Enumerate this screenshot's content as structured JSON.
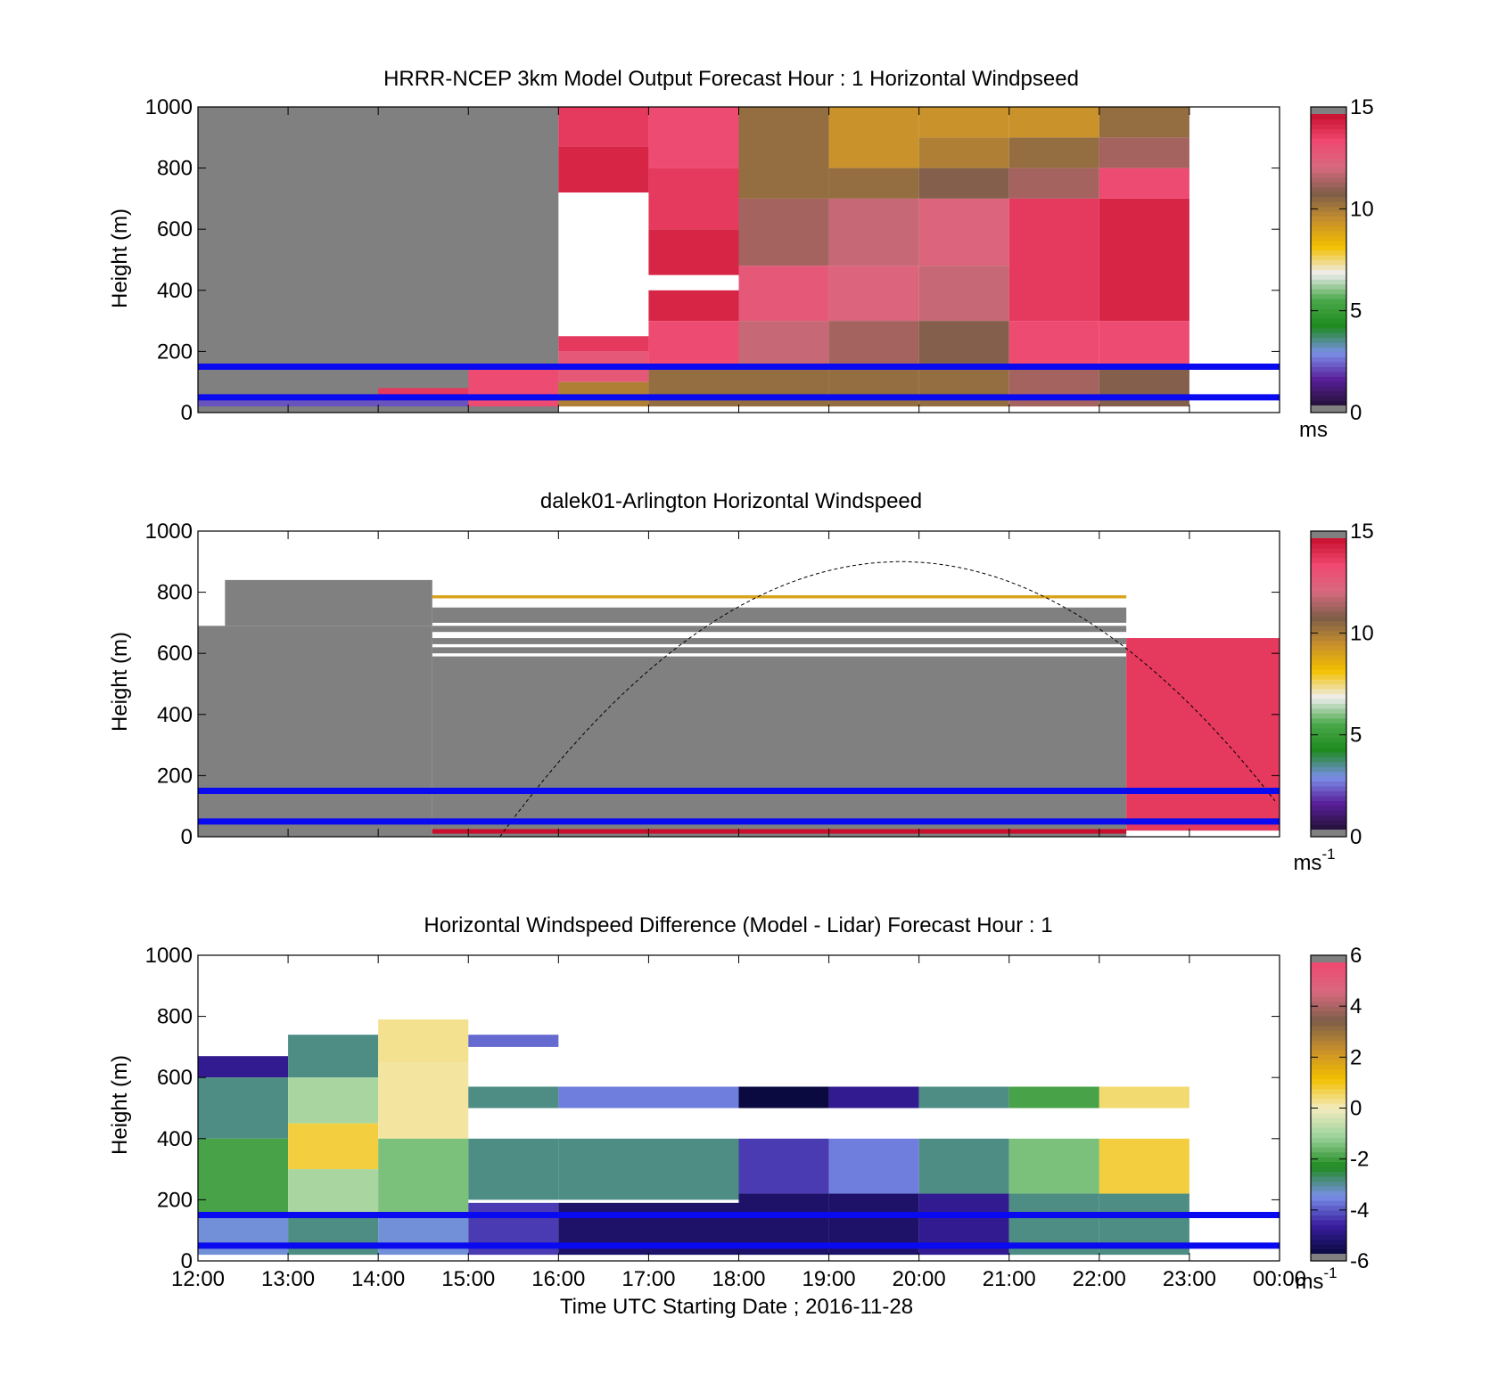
{
  "figure": {
    "xlabel": "Time UTC  Starting Date ; 2016-11-28",
    "colors": {
      "gray": "#808080",
      "lidar_line": "#0a0af0",
      "speed_scale": [
        "#231237",
        "#5a1e9a",
        "#7a90e8",
        "#1f8a1f",
        "#4aa84a",
        "#eeeeee",
        "#f3c000",
        "#c8902c",
        "#7e5e48",
        "#d86a80",
        "#f04870",
        "#c8102e"
      ],
      "diff_scale": [
        "#0a0a40",
        "#3a1ea0",
        "#7a90e8",
        "#1f8a1f",
        "#9ad29a",
        "#f3ecc0",
        "#f3c000",
        "#c8902c",
        "#7e5e48",
        "#d86a80",
        "#f04870"
      ]
    }
  },
  "chart_data": [
    {
      "type": "heatmap",
      "title": "HRRR-NCEP 3km Model Output   Forecast Hour : 1 Horizontal Windpseed",
      "ylabel": "Height (m)",
      "ylim": [
        0,
        1000
      ],
      "xlim": [
        "12:00",
        "00:00"
      ],
      "x_ticks": [
        "12:00",
        "13:00",
        "14:00",
        "15:00",
        "16:00",
        "17:00",
        "18:00",
        "19:00",
        "20:00",
        "21:00",
        "22:00",
        "23:00",
        "00:00"
      ],
      "y_ticks": [
        "0",
        "200",
        "400",
        "600",
        "800",
        "1000"
      ],
      "colorbar": {
        "min": 0,
        "max": 15,
        "ticks": [
          "0",
          "5",
          "10",
          "15"
        ],
        "unit": "ms"
      },
      "reference_lines_m": [
        50,
        150
      ],
      "cells": [
        {
          "t0": 12,
          "t1": 16,
          "z0": 0,
          "z1": 1000,
          "v": 16
        },
        {
          "t0": 12,
          "t1": 16,
          "z0": 20,
          "z1": 40,
          "v": 2
        },
        {
          "t0": 14,
          "t1": 15,
          "z0": 40,
          "z1": 80,
          "v": 14
        },
        {
          "t0": 15,
          "t1": 16,
          "z0": 20,
          "z1": 150,
          "v": 13.5
        },
        {
          "t0": 16,
          "t1": 17,
          "z0": 870,
          "z1": 1000,
          "v": 14
        },
        {
          "t0": 16,
          "t1": 17,
          "z0": 720,
          "z1": 870,
          "v": 14.5
        },
        {
          "t0": 16,
          "t1": 17,
          "z0": 200,
          "z1": 250,
          "v": 14
        },
        {
          "t0": 16,
          "t1": 17,
          "z0": 100,
          "z1": 200,
          "v": 13
        },
        {
          "t0": 16,
          "t1": 17,
          "z0": 20,
          "z1": 100,
          "v": 10
        },
        {
          "t0": 17,
          "t1": 18,
          "z0": 800,
          "z1": 1000,
          "v": 13.5
        },
        {
          "t0": 17,
          "t1": 18,
          "z0": 600,
          "z1": 800,
          "v": 14
        },
        {
          "t0": 17,
          "t1": 18,
          "z0": 450,
          "z1": 600,
          "v": 14.5
        },
        {
          "t0": 17,
          "t1": 18,
          "z0": 300,
          "z1": 400,
          "v": 14.5
        },
        {
          "t0": 17,
          "t1": 18,
          "z0": 150,
          "z1": 300,
          "v": 13.5
        },
        {
          "t0": 17,
          "t1": 18,
          "z0": 20,
          "z1": 150,
          "v": 10.5
        },
        {
          "t0": 18,
          "t1": 19,
          "z0": 700,
          "z1": 1000,
          "v": 10.5
        },
        {
          "t0": 18,
          "t1": 19,
          "z0": 480,
          "z1": 700,
          "v": 11.5
        },
        {
          "t0": 18,
          "t1": 19,
          "z0": 300,
          "z1": 480,
          "v": 13
        },
        {
          "t0": 18,
          "t1": 19,
          "z0": 150,
          "z1": 300,
          "v": 12
        },
        {
          "t0": 18,
          "t1": 19,
          "z0": 20,
          "z1": 150,
          "v": 10.5
        },
        {
          "t0": 19,
          "t1": 20,
          "z0": 800,
          "z1": 1000,
          "v": 9.5
        },
        {
          "t0": 19,
          "t1": 20,
          "z0": 700,
          "z1": 800,
          "v": 10.5
        },
        {
          "t0": 19,
          "t1": 20,
          "z0": 480,
          "z1": 700,
          "v": 12
        },
        {
          "t0": 19,
          "t1": 20,
          "z0": 300,
          "z1": 480,
          "v": 12.5
        },
        {
          "t0": 19,
          "t1": 20,
          "z0": 150,
          "z1": 300,
          "v": 11.5
        },
        {
          "t0": 19,
          "t1": 20,
          "z0": 20,
          "z1": 150,
          "v": 10.5
        },
        {
          "t0": 20,
          "t1": 21,
          "z0": 900,
          "z1": 1000,
          "v": 9.5
        },
        {
          "t0": 20,
          "t1": 21,
          "z0": 800,
          "z1": 900,
          "v": 10
        },
        {
          "t0": 20,
          "t1": 21,
          "z0": 700,
          "z1": 800,
          "v": 11
        },
        {
          "t0": 20,
          "t1": 21,
          "z0": 480,
          "z1": 700,
          "v": 12.5
        },
        {
          "t0": 20,
          "t1": 21,
          "z0": 300,
          "z1": 480,
          "v": 12
        },
        {
          "t0": 20,
          "t1": 21,
          "z0": 150,
          "z1": 300,
          "v": 11
        },
        {
          "t0": 20,
          "t1": 21,
          "z0": 20,
          "z1": 150,
          "v": 10.5
        },
        {
          "t0": 21,
          "t1": 22,
          "z0": 900,
          "z1": 1000,
          "v": 9.5
        },
        {
          "t0": 21,
          "t1": 22,
          "z0": 800,
          "z1": 900,
          "v": 10.5
        },
        {
          "t0": 21,
          "t1": 22,
          "z0": 700,
          "z1": 800,
          "v": 11.5
        },
        {
          "t0": 21,
          "t1": 22,
          "z0": 300,
          "z1": 700,
          "v": 14
        },
        {
          "t0": 21,
          "t1": 22,
          "z0": 150,
          "z1": 300,
          "v": 13.5
        },
        {
          "t0": 21,
          "t1": 22,
          "z0": 20,
          "z1": 150,
          "v": 11.5
        },
        {
          "t0": 22,
          "t1": 23,
          "z0": 900,
          "z1": 1000,
          "v": 10.5
        },
        {
          "t0": 22,
          "t1": 23,
          "z0": 800,
          "z1": 900,
          "v": 11.5
        },
        {
          "t0": 22,
          "t1": 23,
          "z0": 700,
          "z1": 800,
          "v": 13.5
        },
        {
          "t0": 22,
          "t1": 23,
          "z0": 300,
          "z1": 700,
          "v": 14.5
        },
        {
          "t0": 22,
          "t1": 23,
          "z0": 150,
          "z1": 300,
          "v": 13.5
        },
        {
          "t0": 22,
          "t1": 23,
          "z0": 20,
          "z1": 150,
          "v": 11
        }
      ]
    },
    {
      "type": "heatmap",
      "title": "dalek01-Arlington  Horizontal Windspeed",
      "ylabel": "Height (m)",
      "ylim": [
        0,
        1000
      ],
      "xlim": [
        "12:00",
        "00:00"
      ],
      "y_ticks": [
        "0",
        "200",
        "400",
        "600",
        "800",
        "1000"
      ],
      "colorbar": {
        "min": 0,
        "max": 15,
        "ticks": [
          "0",
          "5",
          "10",
          "15"
        ],
        "unit": "ms",
        "unit_exp": "-1"
      },
      "reference_lines_m": [
        50,
        150
      ],
      "solar_elevation_curve": {
        "t_start": 15.35,
        "t_end": 24,
        "peak_t": 19.8,
        "peak_z": 900
      },
      "cells": [
        {
          "t0": 12,
          "t1": 14.6,
          "z0": 0,
          "z1": 690,
          "v": 16
        },
        {
          "t0": 12.3,
          "t1": 14.6,
          "z0": 690,
          "z1": 840,
          "v": 16
        },
        {
          "t0": 14.6,
          "t1": 22.3,
          "z0": 0,
          "z1": 590,
          "v": 16
        },
        {
          "t0": 14.6,
          "t1": 22.3,
          "z0": 600,
          "z1": 620,
          "v": 16
        },
        {
          "t0": 14.6,
          "t1": 22.3,
          "z0": 630,
          "z1": 650,
          "v": 16
        },
        {
          "t0": 14.6,
          "t1": 22.3,
          "z0": 670,
          "z1": 690,
          "v": 16
        },
        {
          "t0": 14.6,
          "t1": 22.3,
          "z0": 700,
          "z1": 750,
          "v": 16
        },
        {
          "t0": 14.6,
          "t1": 22.3,
          "z0": 780,
          "z1": 790,
          "v": 9
        },
        {
          "t0": 14.6,
          "t1": 22.3,
          "z0": 10,
          "z1": 25,
          "v": 15
        },
        {
          "t0": 22.3,
          "t1": 24,
          "z0": 20,
          "z1": 650,
          "v": 14
        }
      ]
    },
    {
      "type": "heatmap",
      "title": "Horizontal Windspeed Difference (Model - Lidar) Forecast Hour : 1",
      "ylabel": "Height (m)",
      "ylim": [
        0,
        1000
      ],
      "xlim": [
        "12:00",
        "00:00"
      ],
      "y_ticks": [
        "0",
        "200",
        "400",
        "600",
        "800",
        "1000"
      ],
      "colorbar": {
        "min": -6,
        "max": 6,
        "ticks": [
          "-6",
          "-4",
          "-2",
          "0",
          "2",
          "4",
          "6"
        ],
        "unit": "ms",
        "unit_exp": "-1"
      },
      "reference_lines_m": [
        50,
        150
      ],
      "cells": [
        {
          "t0": 12,
          "t1": 13,
          "z0": 600,
          "z1": 670,
          "v": -5
        },
        {
          "t0": 12,
          "t1": 13,
          "z0": 400,
          "z1": 600,
          "v": -3
        },
        {
          "t0": 12,
          "t1": 13,
          "z0": 150,
          "z1": 400,
          "v": -2
        },
        {
          "t0": 12,
          "t1": 13,
          "z0": 20,
          "z1": 150,
          "v": -3.5
        },
        {
          "t0": 13,
          "t1": 14,
          "z0": 600,
          "z1": 740,
          "v": -3
        },
        {
          "t0": 13,
          "t1": 14,
          "z0": 450,
          "z1": 600,
          "v": -1
        },
        {
          "t0": 13,
          "t1": 14,
          "z0": 300,
          "z1": 450,
          "v": 0.8
        },
        {
          "t0": 13,
          "t1": 14,
          "z0": 150,
          "z1": 300,
          "v": -1
        },
        {
          "t0": 13,
          "t1": 14,
          "z0": 20,
          "z1": 150,
          "v": -3
        },
        {
          "t0": 14,
          "t1": 15,
          "z0": 650,
          "z1": 790,
          "v": 0.3
        },
        {
          "t0": 14,
          "t1": 15,
          "z0": 400,
          "z1": 650,
          "v": 0.2
        },
        {
          "t0": 14,
          "t1": 15,
          "z0": 150,
          "z1": 400,
          "v": -1.5
        },
        {
          "t0": 14,
          "t1": 15,
          "z0": 20,
          "z1": 150,
          "v": -3.5
        },
        {
          "t0": 15,
          "t1": 16,
          "z0": 700,
          "z1": 740,
          "v": -4
        },
        {
          "t0": 15,
          "t1": 16,
          "z0": 500,
          "z1": 570,
          "v": -3
        },
        {
          "t0": 15,
          "t1": 16,
          "z0": 200,
          "z1": 400,
          "v": -3
        },
        {
          "t0": 15,
          "t1": 16,
          "z0": 20,
          "z1": 190,
          "v": -4.5
        },
        {
          "t0": 16,
          "t1": 18,
          "z0": 500,
          "z1": 570,
          "v": -3.8
        },
        {
          "t0": 16,
          "t1": 18,
          "z0": 200,
          "z1": 400,
          "v": -3
        },
        {
          "t0": 16,
          "t1": 18,
          "z0": 20,
          "z1": 190,
          "v": -5.5
        },
        {
          "t0": 18,
          "t1": 19,
          "z0": 500,
          "z1": 570,
          "v": -6
        },
        {
          "t0": 18,
          "t1": 19,
          "z0": 220,
          "z1": 400,
          "v": -4.5
        },
        {
          "t0": 18,
          "t1": 19,
          "z0": 20,
          "z1": 220,
          "v": -5.5
        },
        {
          "t0": 19,
          "t1": 20,
          "z0": 500,
          "z1": 570,
          "v": -5
        },
        {
          "t0": 19,
          "t1": 20,
          "z0": 220,
          "z1": 400,
          "v": -3.8
        },
        {
          "t0": 19,
          "t1": 20,
          "z0": 20,
          "z1": 220,
          "v": -5.5
        },
        {
          "t0": 20,
          "t1": 21,
          "z0": 500,
          "z1": 570,
          "v": -3
        },
        {
          "t0": 20,
          "t1": 21,
          "z0": 220,
          "z1": 400,
          "v": -3
        },
        {
          "t0": 20,
          "t1": 21,
          "z0": 20,
          "z1": 220,
          "v": -5
        },
        {
          "t0": 21,
          "t1": 22,
          "z0": 500,
          "z1": 570,
          "v": -2
        },
        {
          "t0": 21,
          "t1": 22,
          "z0": 220,
          "z1": 400,
          "v": -1.5
        },
        {
          "t0": 21,
          "t1": 22,
          "z0": 20,
          "z1": 220,
          "v": -3
        },
        {
          "t0": 22,
          "t1": 23,
          "z0": 500,
          "z1": 570,
          "v": 0.5
        },
        {
          "t0": 22,
          "t1": 23,
          "z0": 220,
          "z1": 400,
          "v": 0.8
        },
        {
          "t0": 22,
          "t1": 23,
          "z0": 20,
          "z1": 220,
          "v": -3
        }
      ]
    }
  ]
}
